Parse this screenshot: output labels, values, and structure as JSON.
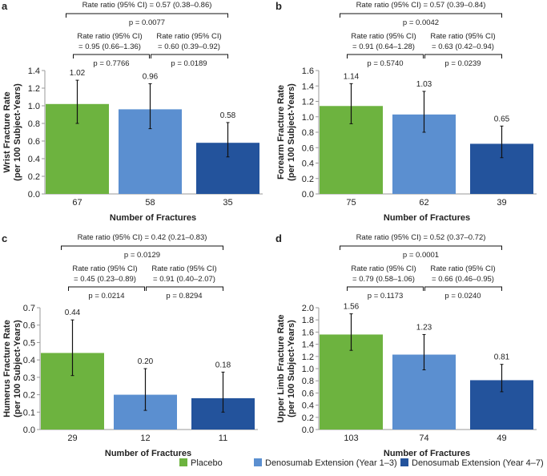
{
  "colors": {
    "placebo": "#6db33f",
    "ext13": "#5b8fd0",
    "ext47": "#23539c"
  },
  "legend": [
    "Placebo",
    "Denosumab Extension (Year 1–3)",
    "Denosumab Extension (Year 4–7)"
  ],
  "chart_data": [
    {
      "type": "bar",
      "panel": "a",
      "ylabel": [
        "Wrist Fracture Rate",
        "(per 100 Subject-Years)"
      ],
      "xlabel": "Number of Fractures",
      "ylim": [
        0,
        1.4
      ],
      "yticks": [
        "0.0",
        "0.2",
        "0.4",
        "0.6",
        "0.8",
        "1.0",
        "1.2",
        "1.4"
      ],
      "categories": [
        "67",
        "58",
        "35"
      ],
      "values": [
        1.02,
        0.96,
        0.58
      ],
      "value_labels": [
        "1.02",
        "0.96",
        "0.58"
      ],
      "ci": [
        [
          0.8,
          1.29
        ],
        [
          0.74,
          1.25
        ],
        [
          0.42,
          0.81
        ]
      ],
      "overall": {
        "text": "Rate ratio (95% CI) = 0.57 (0.38–0.86)",
        "p": "p = 0.0077"
      },
      "left": {
        "line1": "Rate ratio (95% CI)",
        "line2": "= 0.95 (0.66–1.36)",
        "p": "p = 0.7766"
      },
      "right": {
        "line1": "Rate ratio (95% CI)",
        "line2": "= 0.60 (0.39–0.92)",
        "p": "p = 0.0189"
      }
    },
    {
      "type": "bar",
      "panel": "b",
      "ylabel": [
        "Forearm Fracture Rate",
        "(per 100 Subject-Years)"
      ],
      "xlabel": "Number of Fractures",
      "ylim": [
        0,
        1.6
      ],
      "yticks": [
        "0.0",
        "0.2",
        "0.4",
        "0.6",
        "0.8",
        "1.0",
        "1.2",
        "1.4",
        "1.6"
      ],
      "categories": [
        "75",
        "62",
        "39"
      ],
      "values": [
        1.14,
        1.03,
        0.65
      ],
      "value_labels": [
        "1.14",
        "1.03",
        "0.65"
      ],
      "ci": [
        [
          0.91,
          1.43
        ],
        [
          0.8,
          1.33
        ],
        [
          0.47,
          0.88
        ]
      ],
      "overall": {
        "text": "Rate ratio (95% CI) = 0.57 (0.39–0.84)",
        "p": "p = 0.0042"
      },
      "left": {
        "line1": "Rate ratio (95% CI)",
        "line2": "= 0.91 (0.64–1.28)",
        "p": "p = 0.5740"
      },
      "right": {
        "line1": "Rate ratio (95% CI)",
        "line2": "= 0.63 (0.42–0.94)",
        "p": "p = 0.0239"
      }
    },
    {
      "type": "bar",
      "panel": "c",
      "ylabel": [
        "Humerus Fracture Rate",
        "(per 100 Subject-Years)"
      ],
      "xlabel": "Number of Fractures",
      "ylim": [
        0,
        0.7
      ],
      "yticks": [
        "0.0",
        "0.1",
        "0.2",
        "0.3",
        "0.4",
        "0.5",
        "0.6",
        "0.7"
      ],
      "categories": [
        "29",
        "12",
        "11"
      ],
      "values": [
        0.44,
        0.2,
        0.18
      ],
      "value_labels": [
        "0.44",
        "0.20",
        "0.18"
      ],
      "ci": [
        [
          0.31,
          0.63
        ],
        [
          0.11,
          0.35
        ],
        [
          0.1,
          0.33
        ]
      ],
      "overall": {
        "text": "Rate ratio (95% CI) = 0.42 (0.21–0.83)",
        "p": "p = 0.0129"
      },
      "left": {
        "line1": "Rate ratio (95% CI)",
        "line2": "= 0.45 (0.23–0.89)",
        "p": "p = 0.0214"
      },
      "right": {
        "line1": "Rate ratio (95% CI)",
        "line2": "= 0.91 (0.40–2.07)",
        "p": "p = 0.8294"
      }
    },
    {
      "type": "bar",
      "panel": "d",
      "ylabel": [
        "Upper Limb Fracture Rate",
        "(per 100 Subject-Years)"
      ],
      "xlabel": "Number of Fractures",
      "ylim": [
        0,
        2.0
      ],
      "yticks": [
        "0.0",
        "0.2",
        "0.4",
        "0.6",
        "0.8",
        "1.0",
        "1.2",
        "1.4",
        "1.6",
        "1.8",
        "2.0"
      ],
      "categories": [
        "103",
        "74",
        "49"
      ],
      "values": [
        1.56,
        1.23,
        0.81
      ],
      "value_labels": [
        "1.56",
        "1.23",
        "0.81"
      ],
      "ci": [
        [
          1.3,
          1.9
        ],
        [
          0.98,
          1.56
        ],
        [
          0.62,
          1.07
        ]
      ],
      "overall": {
        "text": "Rate ratio (95% CI) = 0.52 (0.37–0.72)",
        "p": "p = 0.0001"
      },
      "left": {
        "line1": "Rate ratio (95% CI)",
        "line2": "= 0.79 (0.58–1.06)",
        "p": "p = 0.1173"
      },
      "right": {
        "line1": "Rate ratio (95% CI)",
        "line2": "= 0.66 (0.46–0.95)",
        "p": "p = 0.0240"
      }
    }
  ]
}
